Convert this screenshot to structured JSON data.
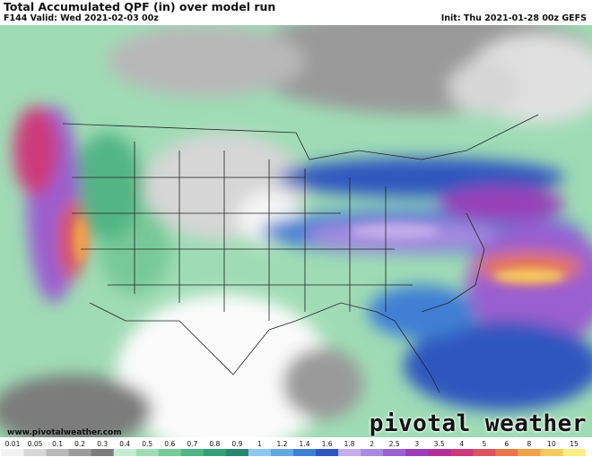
{
  "header": {
    "title": "Total Accumulated QPF (in) over model run",
    "valid": "F144 Valid: Wed 2021-02-03 00z",
    "init": "Init: Thu 2021-01-28 00z GEFS"
  },
  "footer": {
    "site": "www.pivotalweather.com",
    "brand": "pivotal weather"
  },
  "colorbar": {
    "labels": [
      "0.01",
      "0.05",
      "0.1",
      "0.2",
      "0.3",
      "0.4",
      "0.5",
      "0.6",
      "0.7",
      "0.8",
      "0.9",
      "1",
      "1.2",
      "1.4",
      "1.6",
      "1.8",
      "2",
      "2.5",
      "3",
      "3.5",
      "4",
      "5",
      "6",
      "8",
      "10",
      "15"
    ],
    "colors": [
      "#f2f2f2",
      "#d6d6d6",
      "#b8b8b8",
      "#9a9a9a",
      "#7c7c7c",
      "#c4ecd2",
      "#9fdcb5",
      "#78c999",
      "#52b584",
      "#379d78",
      "#2b856f",
      "#8fc8ec",
      "#62a6e2",
      "#3f7fd4",
      "#2f56bf",
      "#c3b0ec",
      "#a98ae0",
      "#9a5fd0",
      "#9a3fb8",
      "#b3309a",
      "#cc3a7a",
      "#db5460",
      "#e9764a",
      "#f2a24a",
      "#f7cb5d",
      "#fbee86"
    ]
  }
}
